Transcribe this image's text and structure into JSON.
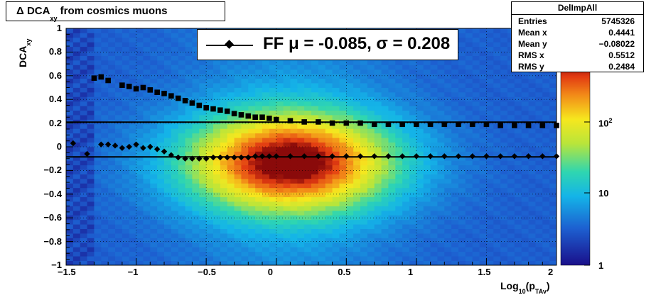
{
  "title": {
    "main": "Δ DCA",
    "sub": "xy",
    "rest": " from cosmics muons"
  },
  "stats": {
    "name": "DelImpAll",
    "rows": [
      {
        "key": "Entries",
        "value": "5745326"
      },
      {
        "key": "Mean x",
        "value": "0.4441"
      },
      {
        "key": "Mean y",
        "value": "−0.08022"
      },
      {
        "key": "RMS x",
        "value": "0.5512"
      },
      {
        "key": "RMS y",
        "value": "0.2484"
      }
    ]
  },
  "legend": {
    "label": "FF μ = -0.085, σ =   0.208"
  },
  "axes": {
    "ylabel_main": "DCA",
    "ylabel_sub": "xy",
    "xlabel_main": "Log",
    "xlabel_sub1": "10",
    "xlabel_mid": "(p",
    "xlabel_sub2": "TAv",
    "xlabel_end": ")",
    "xticks": [
      "−1.5",
      "−1",
      "−0.5",
      "0",
      "0.5",
      "1",
      "1.5",
      "2"
    ],
    "yticks": [
      "−1",
      "−0.8",
      "−0.6",
      "−0.4",
      "−0.2",
      "0",
      "0.2",
      "0.4",
      "0.6",
      "0.8",
      "1"
    ],
    "zticks": {
      "t1": "1",
      "t10": "10",
      "t100_base": "10",
      "t100_exp": "2"
    }
  },
  "colors": {
    "cold": "#1e2aa0",
    "warm": "#e8431a",
    "hot": "#7a0000",
    "marker": "#000000"
  },
  "chart_data": {
    "type": "heatmap",
    "title": "Δ DCA_xy from cosmics muons",
    "xlabel": "Log10(p_TAv)",
    "ylabel": "DCA_xy",
    "xlim": [
      -1.5,
      2
    ],
    "ylim": [
      -1,
      1
    ],
    "zscale": "log",
    "zlim": [
      1,
      1000
    ],
    "grid": true,
    "fit_lines": {
      "mean_y": -0.085,
      "sigma_band_upper": 0.208
    },
    "series": [
      {
        "name": "FF μ = -0.085, σ =   0.208",
        "x": [
          -1.45,
          -1.35,
          -1.25,
          -1.2,
          -1.15,
          -1.1,
          -1.05,
          -1.0,
          -0.95,
          -0.9,
          -0.85,
          -0.8,
          -0.75,
          -0.7,
          -0.65,
          -0.6,
          -0.55,
          -0.5,
          -0.45,
          -0.4,
          -0.35,
          -0.3,
          -0.25,
          -0.2,
          -0.15,
          -0.1,
          -0.05,
          0.0,
          0.1,
          0.2,
          0.3,
          0.4,
          0.5,
          0.6,
          0.7,
          0.8,
          0.9,
          1.0,
          1.1,
          1.2,
          1.3,
          1.4,
          1.5,
          1.6,
          1.7,
          1.8,
          1.9,
          2.0
        ],
        "y": [
          0.03,
          -0.06,
          0.02,
          0.02,
          0.01,
          -0.01,
          0.0,
          0.02,
          -0.01,
          0.0,
          -0.02,
          -0.04,
          -0.07,
          -0.09,
          -0.1,
          -0.1,
          -0.1,
          -0.1,
          -0.09,
          -0.09,
          -0.09,
          -0.09,
          -0.09,
          -0.09,
          -0.08,
          -0.08,
          -0.08,
          -0.08,
          -0.08,
          -0.08,
          -0.08,
          -0.08,
          -0.08,
          -0.08,
          -0.08,
          -0.08,
          -0.08,
          -0.08,
          -0.08,
          -0.08,
          -0.08,
          -0.08,
          -0.08,
          -0.08,
          -0.08,
          -0.08,
          -0.08,
          -0.08
        ]
      },
      {
        "name": "",
        "x": [
          -1.3,
          -1.25,
          -1.2,
          -1.1,
          -1.05,
          -1.0,
          -0.95,
          -0.9,
          -0.85,
          -0.8,
          -0.75,
          -0.7,
          -0.65,
          -0.6,
          -0.55,
          -0.5,
          -0.45,
          -0.4,
          -0.35,
          -0.3,
          -0.25,
          -0.2,
          -0.15,
          -0.1,
          -0.05,
          0.0,
          0.1,
          0.2,
          0.3,
          0.4,
          0.5,
          0.6,
          0.7,
          0.8,
          0.9,
          1.0,
          1.1,
          1.2,
          1.3,
          1.4,
          1.5,
          1.6,
          1.7,
          1.8,
          1.9,
          2.0
        ],
        "y": [
          0.58,
          0.59,
          0.56,
          0.52,
          0.51,
          0.49,
          0.5,
          0.48,
          0.46,
          0.45,
          0.43,
          0.41,
          0.39,
          0.37,
          0.35,
          0.33,
          0.32,
          0.31,
          0.3,
          0.28,
          0.27,
          0.26,
          0.25,
          0.25,
          0.24,
          0.23,
          0.22,
          0.21,
          0.21,
          0.2,
          0.2,
          0.2,
          0.19,
          0.19,
          0.19,
          0.19,
          0.19,
          0.19,
          0.19,
          0.19,
          0.19,
          0.18,
          0.18,
          0.18,
          0.18,
          0.18
        ]
      }
    ]
  }
}
